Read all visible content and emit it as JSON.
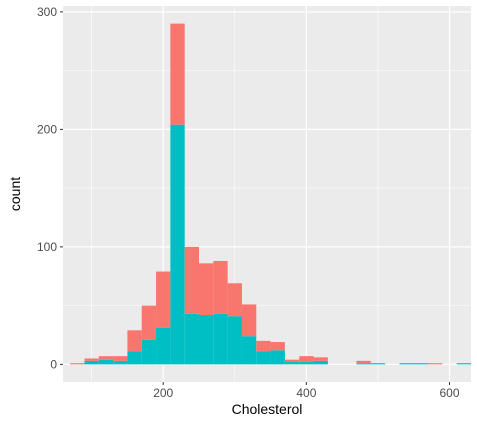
{
  "chart_data": {
    "type": "histogram",
    "xlabel": "Cholesterol",
    "ylabel": "count",
    "xlim": [
      60,
      630
    ],
    "ylim": [
      -15,
      305
    ],
    "x_ticks": [
      200,
      400,
      600
    ],
    "y_ticks": [
      0,
      100,
      200,
      300
    ],
    "grid": true,
    "stacked": true,
    "legend": "none",
    "bin_width": 20,
    "bin_starts": [
      70,
      90,
      110,
      130,
      150,
      170,
      190,
      210,
      230,
      250,
      270,
      290,
      310,
      330,
      350,
      370,
      390,
      410,
      450,
      470,
      490,
      510,
      530,
      550,
      570,
      590,
      610
    ],
    "colors": {
      "panel_background": "#EBEBEB",
      "grid": "#FFFFFF",
      "series_1": "#F8766D",
      "series_2": "#00BFC4"
    },
    "series": [
      {
        "values": [
          1,
          2,
          3,
          4,
          18,
          29,
          48,
          86,
          57,
          44,
          45,
          28,
          27,
          9,
          7,
          2,
          5,
          3,
          0,
          2,
          0,
          0,
          0,
          0,
          1,
          0,
          0
        ]
      },
      {
        "values": [
          0,
          3,
          4,
          3,
          11,
          21,
          31,
          204,
          43,
          42,
          43,
          41,
          24,
          11,
          12,
          2,
          2,
          3,
          0,
          1,
          1,
          0,
          1,
          1,
          0,
          0,
          1
        ]
      }
    ]
  }
}
